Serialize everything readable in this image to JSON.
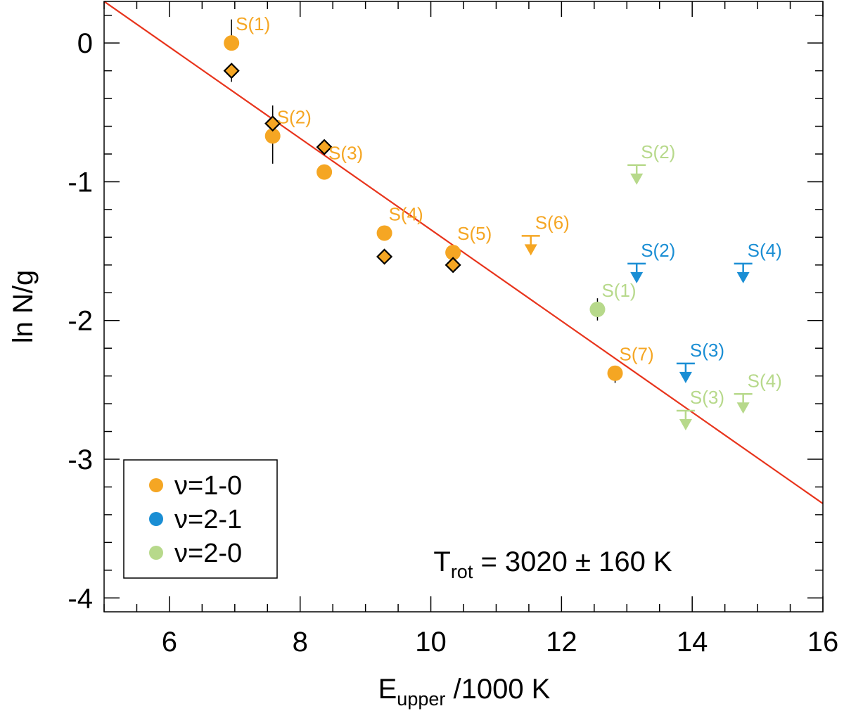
{
  "colors": {
    "v10": "#f5a623",
    "v21": "#1a8ed4",
    "v20": "#b7d98b",
    "fit": "#e8341c",
    "axis": "#000000"
  },
  "chart_data": {
    "type": "scatter",
    "xlabel": {
      "main": "E",
      "sub": "upper",
      "rest": " /1000 K"
    },
    "ylabel": "ln N/g",
    "xlim": [
      5,
      16
    ],
    "ylim": [
      -4.1,
      0.3
    ],
    "xticks": [
      6,
      8,
      10,
      12,
      14,
      16
    ],
    "xtick_labels": [
      "6",
      "8",
      "10",
      "12",
      "14",
      "16"
    ],
    "yticks": [
      0,
      -1,
      -2,
      -3,
      -4
    ],
    "ytick_labels": [
      "0",
      "-1",
      "-2",
      "-3",
      "-4"
    ],
    "annotation": {
      "main": "T",
      "sub": "rot",
      "rest": " = 3020 ± 160 K"
    },
    "legend": {
      "position": "bottom-left",
      "entries": [
        {
          "label": "ν=1-0",
          "color_key": "v10"
        },
        {
          "label": "ν=2-1",
          "color_key": "v21"
        },
        {
          "label": "ν=2-0",
          "color_key": "v20"
        }
      ]
    },
    "fit_line": {
      "x": [
        5,
        16
      ],
      "y": [
        0.3,
        -3.32
      ],
      "color_key": "fit"
    },
    "circles": [
      {
        "x": 6.95,
        "y": 0.0,
        "err": [
          0.17,
          0.0
        ],
        "label": "S(1)",
        "color_key": "v10"
      },
      {
        "x": 7.58,
        "y": -0.67,
        "err": [
          0.22,
          0.2
        ],
        "label": "S(2)",
        "color_key": "v10"
      },
      {
        "x": 8.37,
        "y": -0.93,
        "err": null,
        "label": "S(3)",
        "color_key": "v10"
      },
      {
        "x": 9.29,
        "y": -1.37,
        "err": null,
        "label": "S(4)",
        "color_key": "v10"
      },
      {
        "x": 10.34,
        "y": -1.51,
        "err": null,
        "label": "S(5)",
        "color_key": "v10"
      },
      {
        "x": 12.82,
        "y": -2.38,
        "err": [
          0.0,
          0.07
        ],
        "label": "S(7)",
        "color_key": "v10"
      },
      {
        "x": 12.55,
        "y": -1.92,
        "err": [
          0.08,
          0.08
        ],
        "label": "S(1)",
        "color_key": "v20"
      }
    ],
    "diamonds": [
      {
        "x": 6.95,
        "y": -0.2,
        "err": [
          0.0,
          0.08
        ]
      },
      {
        "x": 7.58,
        "y": -0.58,
        "err": [
          0.07,
          0.0
        ]
      },
      {
        "x": 8.37,
        "y": -0.75,
        "err": null
      },
      {
        "x": 9.29,
        "y": -1.54,
        "err": null
      },
      {
        "x": 10.34,
        "y": -1.6,
        "err": null
      }
    ],
    "upper_limits": [
      {
        "x": 11.53,
        "y": -1.39,
        "label": "S(6)",
        "color_key": "v10"
      },
      {
        "x": 13.15,
        "y": -0.88,
        "label": "S(2)",
        "color_key": "v20"
      },
      {
        "x": 13.15,
        "y": -1.59,
        "label": "S(2)",
        "color_key": "v21"
      },
      {
        "x": 14.78,
        "y": -1.59,
        "label": "S(4)",
        "color_key": "v21"
      },
      {
        "x": 13.9,
        "y": -2.31,
        "label": "S(3)",
        "color_key": "v21"
      },
      {
        "x": 13.9,
        "y": -2.65,
        "label": "S(3)",
        "color_key": "v20"
      },
      {
        "x": 14.78,
        "y": -2.53,
        "label": "S(4)",
        "color_key": "v20"
      }
    ]
  }
}
